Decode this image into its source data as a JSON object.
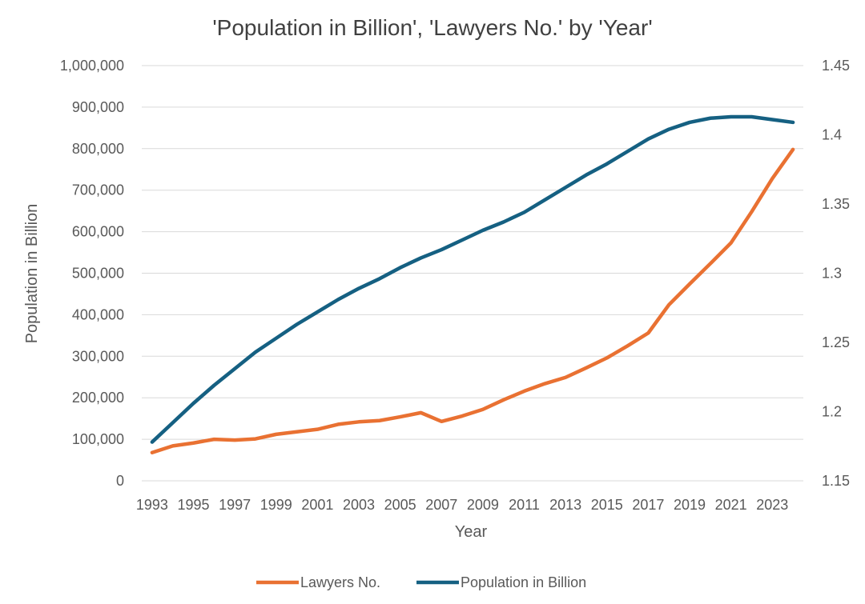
{
  "chart_data": {
    "type": "line",
    "title": "'Population in Billion', 'Lawyers No.' by 'Year'",
    "xlabel": "Year",
    "ylabel": "Population in Billion",
    "y2label": "",
    "x": [
      1993,
      1994,
      1995,
      1996,
      1997,
      1998,
      1999,
      2000,
      2001,
      2002,
      2003,
      2004,
      2005,
      2006,
      2007,
      2008,
      2009,
      2010,
      2011,
      2012,
      2013,
      2014,
      2015,
      2016,
      2017,
      2018,
      2019,
      2020,
      2021,
      2022,
      2023,
      2024
    ],
    "x_tick_labels": [
      "1993",
      "1995",
      "1997",
      "1999",
      "2001",
      "2003",
      "2005",
      "2007",
      "2009",
      "2011",
      "2013",
      "2015",
      "2017",
      "2019",
      "2021",
      "2023"
    ],
    "ylim": [
      0,
      1000000
    ],
    "y_ticks": [
      0,
      100000,
      200000,
      300000,
      400000,
      500000,
      600000,
      700000,
      800000,
      900000,
      1000000
    ],
    "y_tick_labels": [
      "0",
      "100,000",
      "200,000",
      "300,000",
      "400,000",
      "500,000",
      "600,000",
      "700,000",
      "800,000",
      "900,000",
      "1,000,000"
    ],
    "y2lim": [
      1.15,
      1.45
    ],
    "y2_ticks": [
      1.15,
      1.2,
      1.25,
      1.3,
      1.35,
      1.4,
      1.45
    ],
    "y2_tick_labels": [
      "1.15",
      "1.2",
      "1.25",
      "1.3",
      "1.35",
      "1.4",
      "1.45"
    ],
    "grid": true,
    "legend_position": "bottom",
    "series": [
      {
        "name": "Lawyers No.",
        "axis": "left",
        "color": "#e97132",
        "values": [
          68000,
          84000,
          91000,
          100000,
          98000,
          101000,
          112000,
          118000,
          124000,
          136000,
          142000,
          145000,
          154000,
          164000,
          143000,
          156000,
          172000,
          195000,
          216000,
          234000,
          249000,
          272000,
          296000,
          325000,
          356000,
          424000,
          474000,
          523000,
          573000,
          648000,
          728000,
          798000
        ]
      },
      {
        "name": "Population in Billion",
        "axis": "right",
        "color": "#156082",
        "values": [
          1.178,
          1.192,
          1.206,
          1.219,
          1.231,
          1.243,
          1.253,
          1.263,
          1.272,
          1.281,
          1.289,
          1.296,
          1.304,
          1.311,
          1.317,
          1.324,
          1.331,
          1.337,
          1.344,
          1.353,
          1.362,
          1.371,
          1.379,
          1.388,
          1.397,
          1.404,
          1.409,
          1.412,
          1.413,
          1.413,
          1.411,
          1.409
        ]
      }
    ]
  }
}
